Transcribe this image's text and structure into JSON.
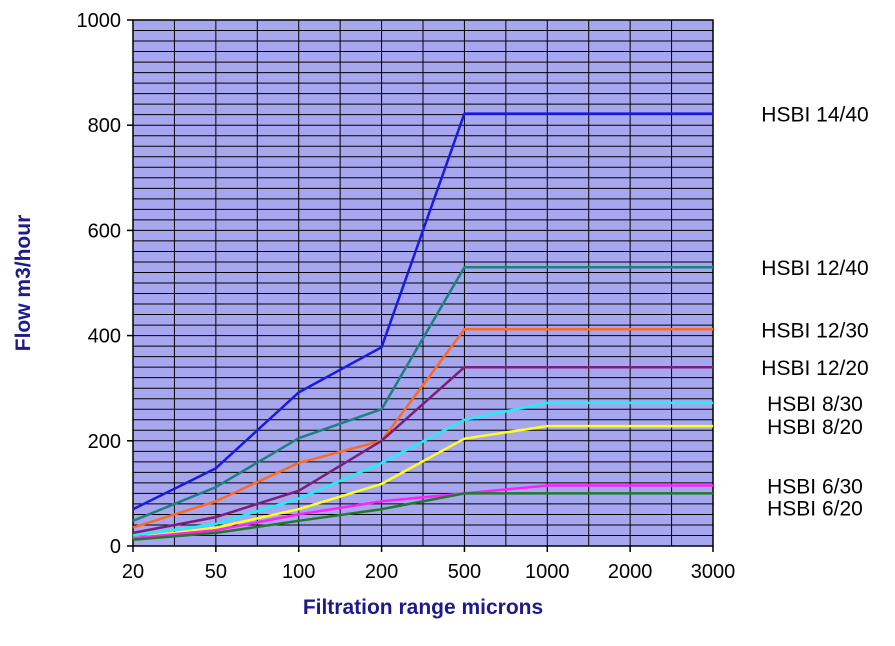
{
  "chart_data": {
    "type": "line",
    "title": "",
    "xlabel": "Filtration range microns",
    "ylabel": "Flow m3/hour",
    "x": [
      "20",
      "50",
      "100",
      "200",
      "500",
      "1000",
      "2000",
      "3000"
    ],
    "ylim": [
      0,
      1000
    ],
    "yticks": [
      0,
      200,
      400,
      600,
      800,
      1000
    ],
    "grid": true,
    "plot_background": "#a7a7ef",
    "grid_color": "#000000",
    "legend": "labels at right end of each series",
    "series": [
      {
        "name": "HSBI 14/40",
        "color": "#1a1ae6",
        "values": [
          70,
          148,
          292,
          378,
          822,
          822,
          822,
          822
        ]
      },
      {
        "name": "HSBI 12/40",
        "color": "#1f8080",
        "values": [
          48,
          112,
          205,
          260,
          530,
          530,
          530,
          530
        ]
      },
      {
        "name": "HSBI 12/30",
        "color": "#ff6a1f",
        "values": [
          35,
          85,
          158,
          200,
          412,
          412,
          412,
          412
        ]
      },
      {
        "name": "HSBI 12/20",
        "color": "#7a1f7a",
        "values": [
          25,
          55,
          105,
          200,
          340,
          340,
          340,
          340
        ]
      },
      {
        "name": "HSBI 8/30",
        "color": "#1ff0f5",
        "values": [
          20,
          42,
          90,
          158,
          240,
          272,
          272,
          272
        ]
      },
      {
        "name": "HSBI 8/20",
        "color": "#ffff1f",
        "values": [
          15,
          35,
          70,
          118,
          204,
          228,
          228,
          228
        ]
      },
      {
        "name": "HSBI 6/30",
        "color": "#ff1fff",
        "values": [
          15,
          30,
          60,
          85,
          100,
          115,
          115,
          115
        ]
      },
      {
        "name": "HSBI 6/20",
        "color": "#1f7a2a",
        "values": [
          12,
          25,
          48,
          70,
          100,
          100,
          100,
          100
        ]
      }
    ]
  }
}
